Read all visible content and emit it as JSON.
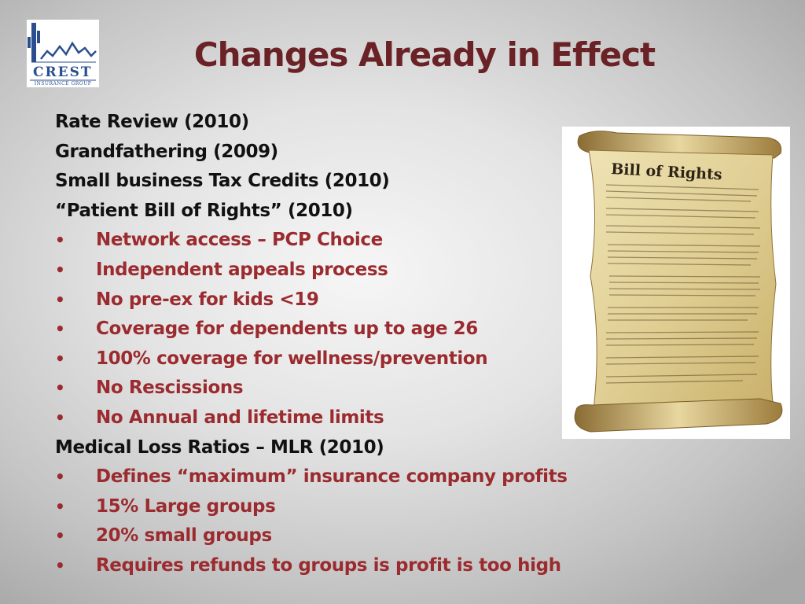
{
  "logo": {
    "name": "CREST",
    "subtitle": "INSURANCE GROUP",
    "brand_color": "#2a4f8f"
  },
  "title": "Changes Already in Effect",
  "items": [
    {
      "level": 1,
      "text": "Rate Review (2010)"
    },
    {
      "level": 1,
      "text": "Grandfathering (2009)"
    },
    {
      "level": 1,
      "text": "Small business Tax Credits (2010)"
    },
    {
      "level": 1,
      "text": "“Patient Bill of Rights” (2010)"
    },
    {
      "level": 2,
      "bullet": "•",
      "text": "Network access – PCP Choice"
    },
    {
      "level": 2,
      "bullet": "•",
      "text": "Independent appeals process"
    },
    {
      "level": 2,
      "bullet": "•",
      "text": "No pre-ex for kids <19"
    },
    {
      "level": 2,
      "bullet": "•",
      "text": "Coverage for dependents up to age 26"
    },
    {
      "level": 2,
      "bullet": "•",
      "text": "100% coverage for wellness/prevention"
    },
    {
      "level": 2,
      "bullet": "•",
      "text": "No Rescissions"
    },
    {
      "level": 2,
      "bullet": "•",
      "text": "No Annual and lifetime limits"
    },
    {
      "level": 1,
      "text": "Medical Loss Ratios – MLR (2010)"
    },
    {
      "level": 2,
      "bullet": "•",
      "text": "Defines “maximum” insurance company profits"
    },
    {
      "level": 2,
      "bullet": "•",
      "text": "15% Large groups"
    },
    {
      "level": 2,
      "bullet": "•",
      "text": "20% small groups"
    },
    {
      "level": 2,
      "bullet": "•",
      "text": "Requires refunds to groups is profit is too high"
    }
  ],
  "image": {
    "heading": "Bill of Rights",
    "icon": "parchment-scroll-icon"
  },
  "colors": {
    "title": "#6b2226",
    "subitem": "#9b2b2f",
    "text": "#111111",
    "parchment": "#e2d29c"
  }
}
